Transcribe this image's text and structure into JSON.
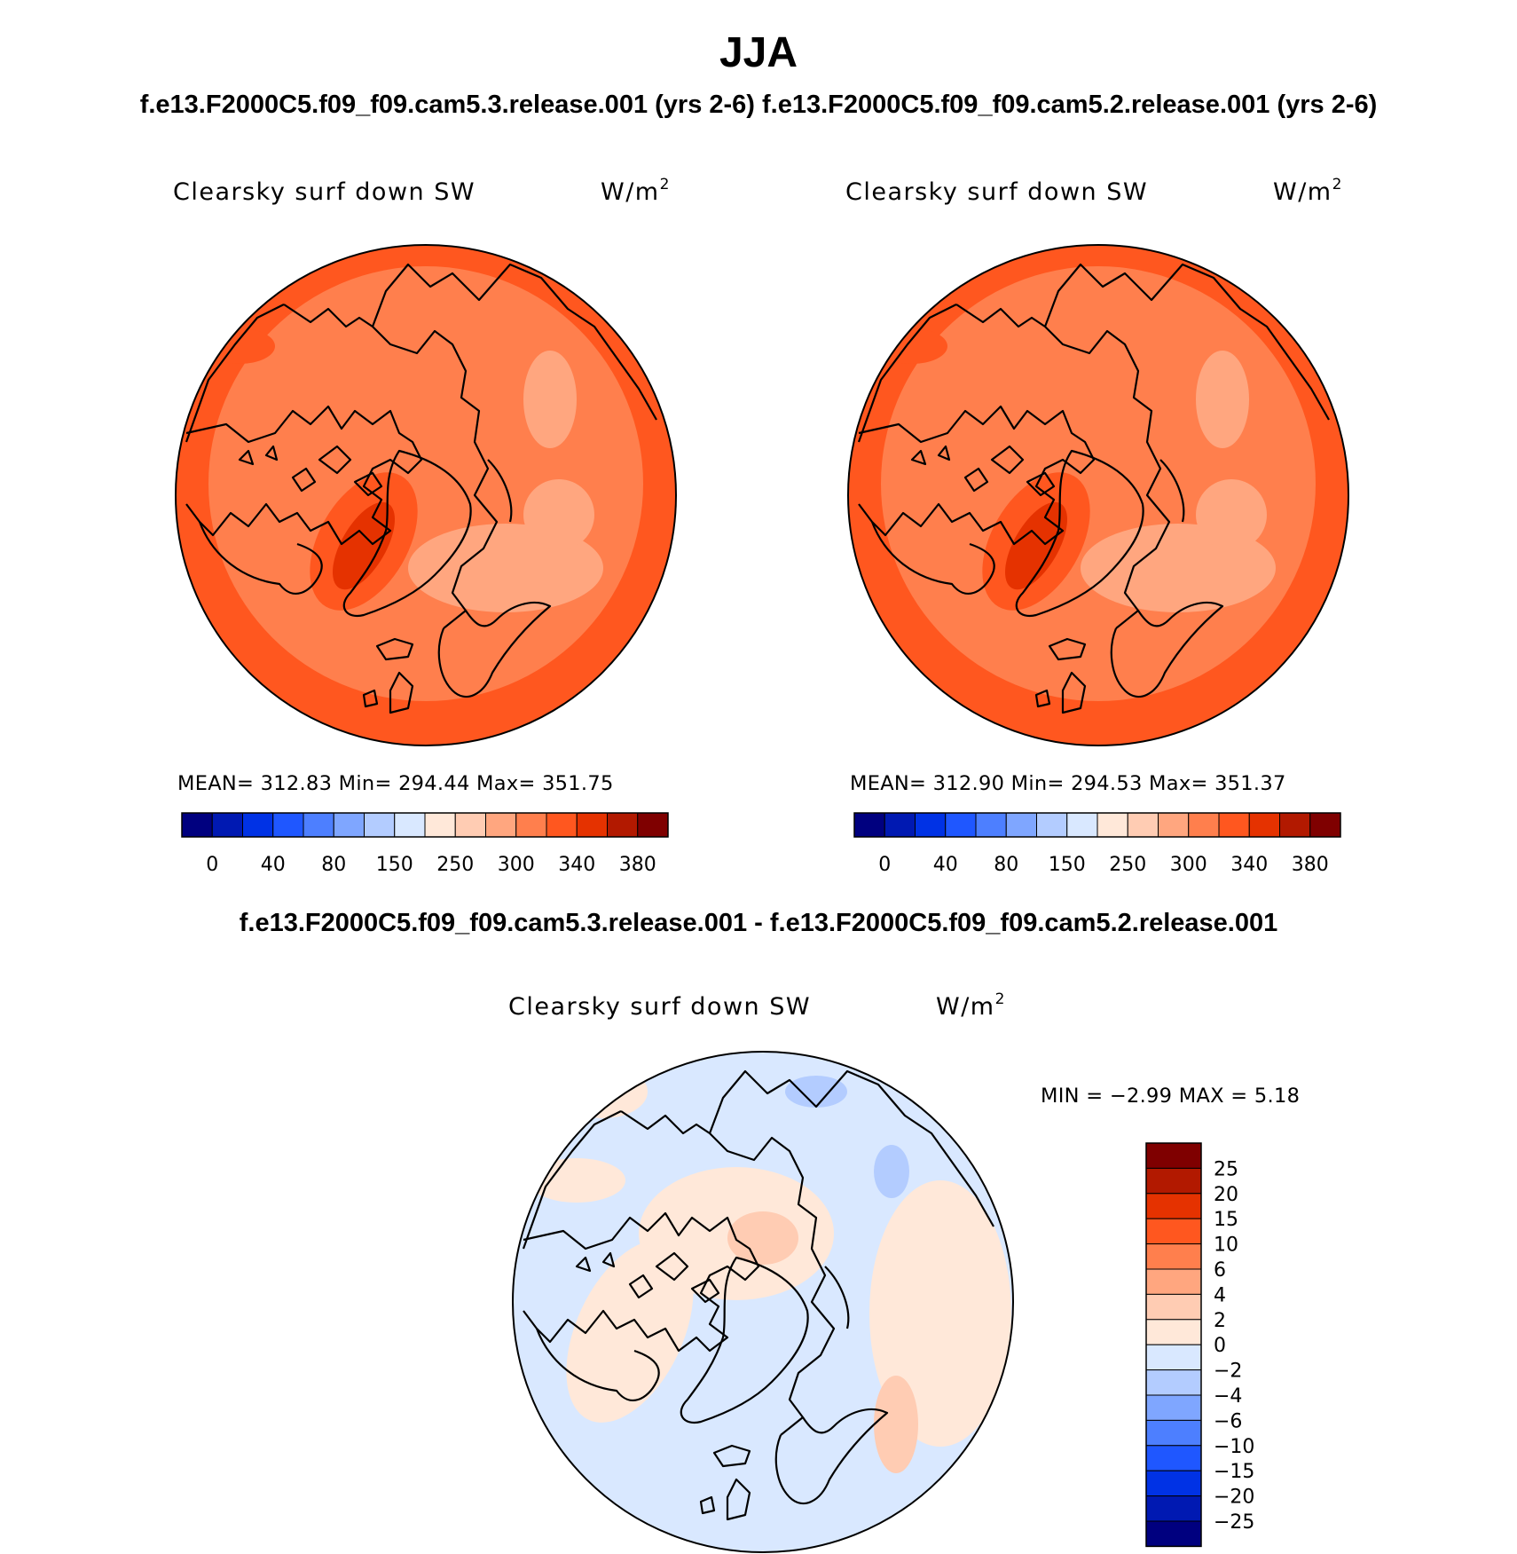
{
  "header": {
    "main_title": "JJA",
    "sub_title": "f.e13.F2000C5.f09_f09.cam5.3.release.001 (yrs 2-6)  f.e13.F2000C5.f09_f09.cam5.2.release.001 (yrs 2-6)",
    "diff_title": "f.e13.F2000C5.f09_f09.cam5.3.release.001 - f.e13.F2000C5.f09_f09.cam5.2.release.001"
  },
  "panels": [
    {
      "variable": "Clearsky surf down SW",
      "units_base": "W/m",
      "units_exp": "2",
      "stats": "MEAN= 312.83   Min= 294.44   Max= 351.75"
    },
    {
      "variable": "Clearsky surf down SW",
      "units_base": "W/m",
      "units_exp": "2",
      "stats": "MEAN= 312.90   Min= 294.53   Max= 351.37"
    }
  ],
  "diff_panel": {
    "variable": "Clearsky surf down SW",
    "units_base": "W/m",
    "units_exp": "2",
    "minmax": "MIN =    −2.99  MAX =     5.18"
  },
  "colorbar_abs": {
    "labels": [
      "0",
      "40",
      "80",
      "150",
      "250",
      "300",
      "340",
      "380"
    ],
    "colors": [
      "#00007f",
      "#0019b2",
      "#0032e5",
      "#1f57ff",
      "#4d7fff",
      "#7fa6ff",
      "#b3ccff",
      "#d9e8ff",
      "#ffe8d9",
      "#ffccb3",
      "#ffa67f",
      "#ff7f4d",
      "#ff571f",
      "#e53200",
      "#b21900",
      "#7f0000"
    ]
  },
  "colorbar_diff": {
    "labels": [
      "25",
      "20",
      "15",
      "10",
      "6",
      "4",
      "2",
      "0",
      "−2",
      "−4",
      "−6",
      "−10",
      "−15",
      "−20",
      "−25"
    ],
    "colors": [
      "#7f0000",
      "#b21900",
      "#e53200",
      "#ff571f",
      "#ff7f4d",
      "#ffa67f",
      "#ffccb3",
      "#ffe8d9",
      "#d9e8ff",
      "#b3ccff",
      "#7fa6ff",
      "#4d7fff",
      "#1f57ff",
      "#0032e5",
      "#0019b2",
      "#00007f"
    ]
  },
  "colors": {
    "field_base": "#ff7f4d",
    "field_high": "#ff571f",
    "field_max": "#e53200",
    "field_low": "#ffa67f",
    "diff_base": "#d9e8ff",
    "diff_pos": "#ffe8d9",
    "diff_pos2": "#ffccb3",
    "diff_neg": "#b3ccff"
  }
}
